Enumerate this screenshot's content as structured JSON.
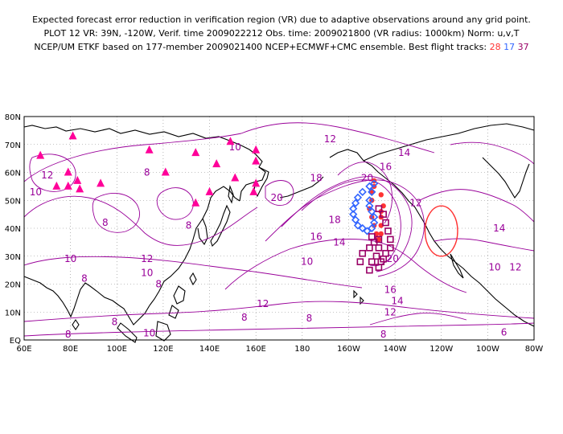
{
  "title": {
    "line1": "Expected forecast error reduction in verification region (VR) due to adaptive observations around any grid point.",
    "line2": "PLOT 12 VR: 39N, -120W, Verif. time 2009022212 Obs. time: 2009021800 (VR radius: 1000km) Norm: u,v,T",
    "line3_prefix": "NCEP/UM ETKF based on 177-member 2009021400 NCEP+ECMWF+CMC ensemble. Best flight tracks:",
    "track_counts": [
      {
        "value": "28",
        "color": "#ff3333"
      },
      {
        "value": "17",
        "color": "#3366ff"
      },
      {
        "value": "37",
        "color": "#990066"
      }
    ]
  },
  "axes": {
    "lat_labels": [
      "80N",
      "70N",
      "60N",
      "50N",
      "40N",
      "30N",
      "20N",
      "10N",
      "EQ"
    ],
    "lon_labels": [
      "60E",
      "80E",
      "100E",
      "120E",
      "140E",
      "160E",
      "180",
      "160W",
      "140W",
      "120W",
      "100W",
      "80W"
    ]
  },
  "contour_color": "#990099",
  "triangle_color": "#ff0099",
  "contour_labels": [
    {
      "text": "10",
      "lon": 151,
      "lat": 69
    },
    {
      "text": "12",
      "lon": 192,
      "lat": 72
    },
    {
      "text": "14",
      "lon": 224,
      "lat": 67
    },
    {
      "text": "16",
      "lon": 216,
      "lat": 62
    },
    {
      "text": "18",
      "lon": 186,
      "lat": 58
    },
    {
      "text": "20",
      "lon": 169,
      "lat": 51
    },
    {
      "text": "20",
      "lon": 208,
      "lat": 58
    },
    {
      "text": "18",
      "lon": 194,
      "lat": 43
    },
    {
      "text": "16",
      "lon": 186,
      "lat": 37
    },
    {
      "text": "14",
      "lon": 196,
      "lat": 35
    },
    {
      "text": "12",
      "lon": 229,
      "lat": 49
    },
    {
      "text": "14",
      "lon": 265,
      "lat": 40
    },
    {
      "text": "12",
      "lon": 272,
      "lat": 26
    },
    {
      "text": "10",
      "lon": 263,
      "lat": 26
    },
    {
      "text": "10",
      "lon": 182,
      "lat": 28
    },
    {
      "text": "20",
      "lon": 219,
      "lat": 29
    },
    {
      "text": "16",
      "lon": 218,
      "lat": 18
    },
    {
      "text": "14",
      "lon": 221,
      "lat": 14
    },
    {
      "text": "12",
      "lon": 218,
      "lat": 10
    },
    {
      "text": "12",
      "lon": 70,
      "lat": 59
    },
    {
      "text": "10",
      "lon": 65,
      "lat": 53
    },
    {
      "text": "8",
      "lon": 113,
      "lat": 60
    },
    {
      "text": "8",
      "lon": 131,
      "lat": 41
    },
    {
      "text": "8",
      "lon": 95,
      "lat": 42
    },
    {
      "text": "10",
      "lon": 80,
      "lat": 29
    },
    {
      "text": "8",
      "lon": 86,
      "lat": 22
    },
    {
      "text": "12",
      "lon": 113,
      "lat": 29
    },
    {
      "text": "10",
      "lon": 113,
      "lat": 24
    },
    {
      "text": "8",
      "lon": 118,
      "lat": 20
    },
    {
      "text": "12",
      "lon": 163,
      "lat": 13
    },
    {
      "text": "8",
      "lon": 155,
      "lat": 8
    },
    {
      "text": "8",
      "lon": 183,
      "lat": -9
    },
    {
      "text": "8",
      "lon": 99,
      "lat": -14
    },
    {
      "text": "10",
      "lon": 114,
      "lat": -30
    },
    {
      "text": "8",
      "lon": 79,
      "lat": -32
    },
    {
      "text": "8",
      "lon": 215,
      "lat": -32
    },
    {
      "text": "6",
      "lon": 267,
      "lat": -29
    }
  ],
  "triangles": [
    {
      "lon": 67,
      "lat": 66
    },
    {
      "lon": 81,
      "lat": 73
    },
    {
      "lon": 79,
      "lat": 60
    },
    {
      "lon": 74,
      "lat": 55
    },
    {
      "lon": 79,
      "lat": 55
    },
    {
      "lon": 83,
      "lat": 57
    },
    {
      "lon": 84,
      "lat": 54
    },
    {
      "lon": 93,
      "lat": 56
    },
    {
      "lon": 114,
      "lat": 68
    },
    {
      "lon": 121,
      "lat": 60
    },
    {
      "lon": 134,
      "lat": 67
    },
    {
      "lon": 134,
      "lat": 49
    },
    {
      "lon": 140,
      "lat": 53
    },
    {
      "lon": 143,
      "lat": 63
    },
    {
      "lon": 149,
      "lat": 71
    },
    {
      "lon": 151,
      "lat": 58
    },
    {
      "lon": 160,
      "lat": 68
    },
    {
      "lon": 160,
      "lat": 56
    },
    {
      "lon": 159,
      "lat": 53
    },
    {
      "lon": 160,
      "lat": 64
    }
  ],
  "track_red": [
    {
      "lon": 211,
      "lat": 57
    },
    {
      "lon": 211,
      "lat": 55
    },
    {
      "lon": 210,
      "lat": 53
    },
    {
      "lon": 210,
      "lat": 50
    },
    {
      "lon": 209,
      "lat": 47
    },
    {
      "lon": 210,
      "lat": 44
    },
    {
      "lon": 211,
      "lat": 41
    },
    {
      "lon": 212,
      "lat": 38
    },
    {
      "lon": 213,
      "lat": 36
    },
    {
      "lon": 214,
      "lat": 38
    },
    {
      "lon": 214,
      "lat": 41
    },
    {
      "lon": 214,
      "lat": 44
    },
    {
      "lon": 214,
      "lat": 46
    },
    {
      "lon": 215,
      "lat": 48
    },
    {
      "lon": 214,
      "lat": 52
    }
  ],
  "track_blue": [
    {
      "lon": 211,
      "lat": 56
    },
    {
      "lon": 209,
      "lat": 55
    },
    {
      "lon": 206,
      "lat": 53
    },
    {
      "lon": 204,
      "lat": 51
    },
    {
      "lon": 203,
      "lat": 49
    },
    {
      "lon": 202,
      "lat": 47
    },
    {
      "lon": 202,
      "lat": 45
    },
    {
      "lon": 203,
      "lat": 43
    },
    {
      "lon": 204,
      "lat": 41
    },
    {
      "lon": 206,
      "lat": 40
    },
    {
      "lon": 208,
      "lat": 39
    },
    {
      "lon": 210,
      "lat": 40
    },
    {
      "lon": 211,
      "lat": 42
    },
    {
      "lon": 211,
      "lat": 44
    },
    {
      "lon": 210,
      "lat": 46
    },
    {
      "lon": 209,
      "lat": 48
    },
    {
      "lon": 209,
      "lat": 50
    },
    {
      "lon": 210,
      "lat": 53
    }
  ],
  "track_purple": [
    {
      "lon": 213,
      "lat": 47
    },
    {
      "lon": 215,
      "lat": 45
    },
    {
      "lon": 216,
      "lat": 42
    },
    {
      "lon": 217,
      "lat": 39
    },
    {
      "lon": 218,
      "lat": 36
    },
    {
      "lon": 218,
      "lat": 33
    },
    {
      "lon": 216,
      "lat": 31
    },
    {
      "lon": 215,
      "lat": 29
    },
    {
      "lon": 214,
      "lat": 28
    },
    {
      "lon": 213,
      "lat": 26
    },
    {
      "lon": 209,
      "lat": 25
    },
    {
      "lon": 205,
      "lat": 28
    },
    {
      "lon": 206,
      "lat": 31
    },
    {
      "lon": 209,
      "lat": 33
    },
    {
      "lon": 211,
      "lat": 35
    },
    {
      "lon": 210,
      "lat": 37
    },
    {
      "lon": 213,
      "lat": 36
    },
    {
      "lon": 213,
      "lat": 33
    },
    {
      "lon": 212,
      "lat": 30
    },
    {
      "lon": 210,
      "lat": 28
    }
  ],
  "verification_region": {
    "lat": 39,
    "lon": -120,
    "radius_km": 1000,
    "color": "#ff3333"
  }
}
